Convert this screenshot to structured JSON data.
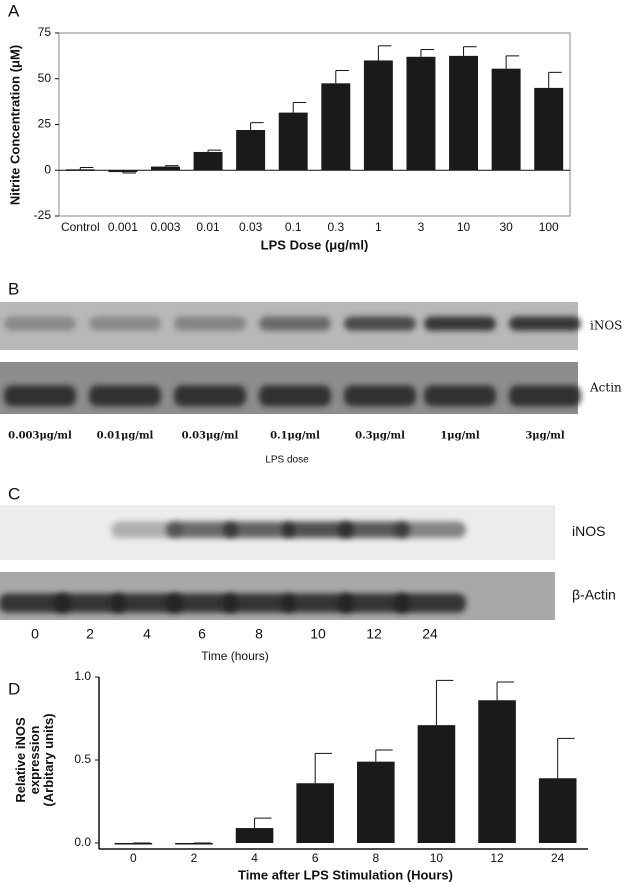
{
  "chart_data": [
    {
      "type": "bar",
      "panel": "A",
      "ylabel": "Nitrite Concentration (μM)",
      "xlabel": "LPS Dose (μg/ml)",
      "categories": [
        "Control",
        "0.001",
        "0.003",
        "0.01",
        "0.03",
        "0.1",
        "0.3",
        "1",
        "3",
        "10",
        "30",
        "100"
      ],
      "values": [
        0.5,
        -1,
        2,
        10,
        22,
        31.5,
        47.5,
        60,
        62,
        62.5,
        55.5,
        45
      ],
      "errors": [
        1,
        0.5,
        0.5,
        1,
        4,
        5.5,
        7,
        8,
        4,
        5,
        7,
        8.5
      ],
      "color": "#1a1a1a",
      "ylim": [
        -25,
        75
      ],
      "yticks": [
        -25,
        0,
        25,
        50,
        75
      ]
    },
    {
      "type": "bar",
      "panel": "D",
      "ylabel": [
        "Relative iNOS",
        "expression",
        "(Arbitary units)"
      ],
      "xlabel": "Time after LPS Stimulation (Hours)",
      "categories": [
        "0",
        "2",
        "4",
        "6",
        "8",
        "10",
        "12",
        "24"
      ],
      "values": [
        0,
        0,
        0.09,
        0.36,
        0.49,
        0.71,
        0.86,
        0.39
      ],
      "errors": [
        0,
        0,
        0.06,
        0.18,
        0.07,
        0.27,
        0.11,
        0.24
      ],
      "color": "#1a1a1a",
      "ylim": [
        0,
        1
      ],
      "yticks": [
        {
          "value": 0,
          "label": "0.0"
        },
        0.5,
        {
          "value": 1,
          "label": "1.0"
        }
      ]
    }
  ],
  "blots": [
    {
      "panel": "B",
      "bands": [
        "iNOS",
        "Actin"
      ],
      "lanes": [
        "0.003μg/ml",
        "0.01μg/ml",
        "0.03μg/ml",
        "0.1μg/ml",
        "0.3μg/ml",
        "1μg/ml",
        "3μg/ml"
      ],
      "xlabel": "LPS dose"
    },
    {
      "panel": "C",
      "bands": [
        "iNOS",
        "β-Actin"
      ],
      "lanes": [
        "0",
        "2",
        "4",
        "6",
        "8",
        "10",
        "12",
        "24"
      ],
      "xlabel": "Time (hours)"
    }
  ]
}
